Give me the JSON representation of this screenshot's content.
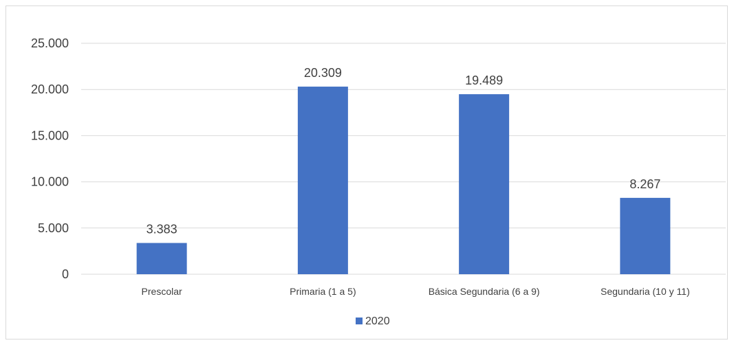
{
  "chart_data": {
    "type": "bar",
    "title": "",
    "xlabel": "",
    "ylabel": "",
    "categories": [
      "Prescolar",
      "Primaria (1 a 5)",
      "Básica Segundaria (6 a 9)",
      "Segundaria (10 y 11)"
    ],
    "series": [
      {
        "name": "2020",
        "values": [
          3383,
          20309,
          19489,
          8267
        ],
        "data_labels": [
          "3.383",
          "20.309",
          "19.489",
          "8.267"
        ],
        "color": "#4472c4"
      }
    ],
    "ylim": [
      0,
      25000
    ],
    "yticks": [
      0,
      5000,
      10000,
      15000,
      20000,
      25000
    ],
    "ytick_labels": [
      "0",
      "5.000",
      "10.000",
      "15.000",
      "20.000",
      "25.000"
    ],
    "grid": true,
    "legend_position": "bottom",
    "colors": {
      "bar": "#4472c4",
      "grid": "#d9d9d9",
      "text": "#404040"
    }
  }
}
